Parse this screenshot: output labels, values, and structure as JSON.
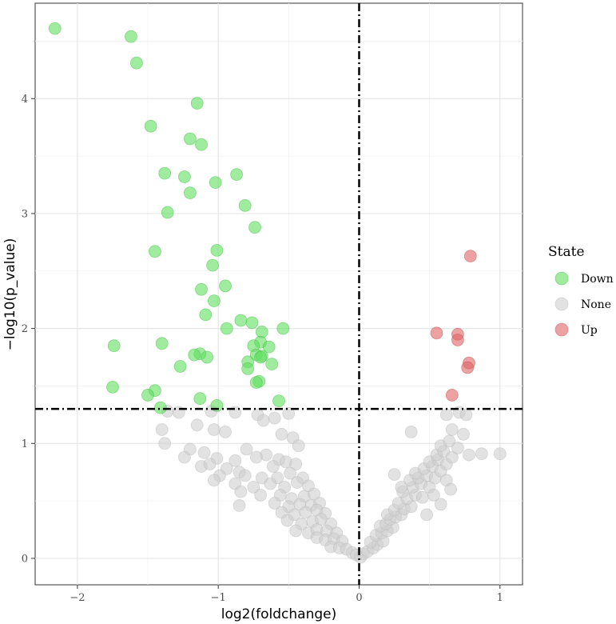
{
  "chart_data": {
    "type": "scatter",
    "title": "",
    "xlabel": "log2(foldchange)",
    "ylabel": "−log10(p_value)",
    "xlim": [
      -2.3,
      1.16
    ],
    "ylim": [
      -0.23,
      4.83
    ],
    "x_ticks": [
      -2,
      -1,
      0,
      1
    ],
    "x_tick_labels": [
      "−2",
      "−1",
      "0",
      "1"
    ],
    "y_ticks": [
      0,
      1,
      2,
      3,
      4
    ],
    "y_tick_labels": [
      "0",
      "1",
      "2",
      "3",
      "4"
    ],
    "thresholds": {
      "x": 0,
      "y": 1.3
    },
    "legend": {
      "title": "State",
      "position": "right",
      "entries": [
        {
          "label": "Down",
          "color": "#5fe05f"
        },
        {
          "label": "None",
          "color": "#cfcfcf"
        },
        {
          "label": "Up",
          "color": "#e06464"
        }
      ]
    },
    "series": [
      {
        "name": "Down",
        "color": "#5fe05f",
        "stroke": "#3cb83c",
        "points": [
          [
            -2.16,
            4.61
          ],
          [
            -1.62,
            4.54
          ],
          [
            -1.58,
            4.31
          ],
          [
            -1.15,
            3.96
          ],
          [
            -1.48,
            3.76
          ],
          [
            -1.2,
            3.65
          ],
          [
            -1.12,
            3.6
          ],
          [
            -1.38,
            3.35
          ],
          [
            -1.24,
            3.32
          ],
          [
            -0.87,
            3.34
          ],
          [
            -1.02,
            3.27
          ],
          [
            -1.2,
            3.18
          ],
          [
            -0.81,
            3.07
          ],
          [
            -1.36,
            3.01
          ],
          [
            -0.74,
            2.88
          ],
          [
            -1.45,
            2.67
          ],
          [
            -1.01,
            2.68
          ],
          [
            -1.04,
            2.55
          ],
          [
            -0.95,
            2.37
          ],
          [
            -1.12,
            2.34
          ],
          [
            -1.03,
            2.24
          ],
          [
            -1.09,
            2.12
          ],
          [
            -0.84,
            2.07
          ],
          [
            -0.76,
            2.05
          ],
          [
            -0.94,
            2.0
          ],
          [
            -0.54,
            2.0
          ],
          [
            -0.69,
            1.97
          ],
          [
            -1.74,
            1.85
          ],
          [
            -1.4,
            1.87
          ],
          [
            -0.7,
            1.88
          ],
          [
            -0.75,
            1.85
          ],
          [
            -0.64,
            1.84
          ],
          [
            -1.13,
            1.78
          ],
          [
            -1.17,
            1.77
          ],
          [
            -1.08,
            1.75
          ],
          [
            -0.73,
            1.77
          ],
          [
            -0.69,
            1.76
          ],
          [
            -0.7,
            1.75
          ],
          [
            -0.79,
            1.71
          ],
          [
            -0.62,
            1.69
          ],
          [
            -1.27,
            1.67
          ],
          [
            -0.79,
            1.65
          ],
          [
            -0.71,
            1.54
          ],
          [
            -0.73,
            1.53
          ],
          [
            -1.75,
            1.49
          ],
          [
            -1.45,
            1.46
          ],
          [
            -1.5,
            1.42
          ],
          [
            -0.57,
            1.37
          ],
          [
            -1.13,
            1.39
          ],
          [
            -1.41,
            1.31
          ],
          [
            -1.01,
            1.33
          ]
        ]
      },
      {
        "name": "None",
        "color": "#cfcfcf",
        "stroke": "#b8b8b8",
        "points": [
          [
            -1.36,
            1.28
          ],
          [
            -1.28,
            1.27
          ],
          [
            -1.05,
            1.28
          ],
          [
            -0.88,
            1.27
          ],
          [
            -0.72,
            1.25
          ],
          [
            -0.68,
            1.2
          ],
          [
            -0.6,
            1.22
          ],
          [
            -0.5,
            1.26
          ],
          [
            -1.4,
            1.12
          ],
          [
            -1.15,
            1.16
          ],
          [
            -0.95,
            1.1
          ],
          [
            -1.03,
            1.12
          ],
          [
            -0.55,
            1.08
          ],
          [
            -0.47,
            1.05
          ],
          [
            -1.38,
            1.0
          ],
          [
            -1.2,
            0.95
          ],
          [
            -1.1,
            0.92
          ],
          [
            -0.8,
            0.95
          ],
          [
            -0.66,
            0.9
          ],
          [
            -0.43,
            0.98
          ],
          [
            -1.24,
            0.88
          ],
          [
            -1.01,
            0.87
          ],
          [
            -0.88,
            0.85
          ],
          [
            -0.73,
            0.88
          ],
          [
            -0.57,
            0.86
          ],
          [
            -0.52,
            0.84
          ],
          [
            -1.12,
            0.8
          ],
          [
            -1.06,
            0.82
          ],
          [
            -0.94,
            0.78
          ],
          [
            -0.85,
            0.75
          ],
          [
            -0.61,
            0.8
          ],
          [
            -0.45,
            0.82
          ],
          [
            -0.99,
            0.72
          ],
          [
            -0.81,
            0.72
          ],
          [
            -0.69,
            0.7
          ],
          [
            -0.58,
            0.7
          ],
          [
            -0.49,
            0.74
          ],
          [
            -0.4,
            0.7
          ],
          [
            -1.03,
            0.68
          ],
          [
            -0.88,
            0.65
          ],
          [
            -0.75,
            0.62
          ],
          [
            -0.63,
            0.65
          ],
          [
            -0.53,
            0.62
          ],
          [
            -0.44,
            0.66
          ],
          [
            -0.36,
            0.63
          ],
          [
            -0.84,
            0.58
          ],
          [
            -0.7,
            0.55
          ],
          [
            -0.56,
            0.55
          ],
          [
            -0.48,
            0.52
          ],
          [
            -0.39,
            0.54
          ],
          [
            -0.32,
            0.56
          ],
          [
            -0.85,
            0.46
          ],
          [
            -0.6,
            0.48
          ],
          [
            -0.5,
            0.45
          ],
          [
            -0.42,
            0.47
          ],
          [
            -0.34,
            0.46
          ],
          [
            -0.28,
            0.48
          ],
          [
            -0.55,
            0.4
          ],
          [
            -0.46,
            0.38
          ],
          [
            -0.38,
            0.4
          ],
          [
            -0.3,
            0.42
          ],
          [
            -0.24,
            0.39
          ],
          [
            -0.51,
            0.33
          ],
          [
            -0.41,
            0.3
          ],
          [
            -0.33,
            0.32
          ],
          [
            -0.27,
            0.34
          ],
          [
            -0.2,
            0.3
          ],
          [
            -0.45,
            0.24
          ],
          [
            -0.36,
            0.22
          ],
          [
            -0.3,
            0.25
          ],
          [
            -0.23,
            0.24
          ],
          [
            -0.16,
            0.22
          ],
          [
            -0.3,
            0.18
          ],
          [
            -0.24,
            0.16
          ],
          [
            -0.18,
            0.17
          ],
          [
            -0.12,
            0.15
          ],
          [
            -0.2,
            0.1
          ],
          [
            -0.14,
            0.09
          ],
          [
            -0.09,
            0.08
          ],
          [
            -0.05,
            0.05
          ],
          [
            -0.02,
            0.03
          ],
          [
            0.01,
            0.01
          ],
          [
            0.03,
            0.04
          ],
          [
            0.06,
            0.06
          ],
          [
            0.1,
            0.09
          ],
          [
            0.13,
            0.12
          ],
          [
            0.17,
            0.15
          ],
          [
            0.08,
            0.14
          ],
          [
            0.12,
            0.2
          ],
          [
            0.16,
            0.22
          ],
          [
            0.2,
            0.24
          ],
          [
            0.24,
            0.27
          ],
          [
            0.15,
            0.28
          ],
          [
            0.19,
            0.3
          ],
          [
            0.22,
            0.34
          ],
          [
            0.26,
            0.36
          ],
          [
            0.3,
            0.38
          ],
          [
            0.2,
            0.38
          ],
          [
            0.25,
            0.42
          ],
          [
            0.32,
            0.43
          ],
          [
            0.37,
            0.45
          ],
          [
            0.28,
            0.48
          ],
          [
            0.34,
            0.52
          ],
          [
            0.4,
            0.55
          ],
          [
            0.45,
            0.53
          ],
          [
            0.31,
            0.58
          ],
          [
            0.38,
            0.62
          ],
          [
            0.44,
            0.65
          ],
          [
            0.5,
            0.62
          ],
          [
            0.36,
            0.68
          ],
          [
            0.42,
            0.7
          ],
          [
            0.48,
            0.72
          ],
          [
            0.54,
            0.7
          ],
          [
            0.4,
            0.74
          ],
          [
            0.46,
            0.78
          ],
          [
            0.52,
            0.8
          ],
          [
            0.58,
            0.76
          ],
          [
            0.5,
            0.84
          ],
          [
            0.56,
            0.86
          ],
          [
            0.62,
            0.82
          ],
          [
            0.55,
            0.9
          ],
          [
            0.6,
            0.93
          ],
          [
            0.66,
            0.88
          ],
          [
            0.58,
            0.98
          ],
          [
            0.64,
            1.02
          ],
          [
            0.7,
            0.96
          ],
          [
            0.66,
            1.12
          ],
          [
            0.74,
            1.08
          ],
          [
            0.62,
            1.25
          ],
          [
            0.71,
            1.27
          ],
          [
            0.76,
            1.25
          ],
          [
            0.78,
            0.9
          ],
          [
            0.87,
            0.91
          ],
          [
            1.0,
            0.91
          ],
          [
            0.53,
            0.55
          ],
          [
            0.58,
            0.47
          ],
          [
            0.62,
            0.68
          ],
          [
            0.48,
            0.38
          ],
          [
            0.65,
            0.6
          ],
          [
            0.37,
            1.1
          ],
          [
            0.25,
            0.73
          ],
          [
            0.3,
            0.62
          ]
        ]
      },
      {
        "name": "Up",
        "color": "#e06464",
        "stroke": "#c04848",
        "points": [
          [
            0.79,
            2.63
          ],
          [
            0.55,
            1.96
          ],
          [
            0.7,
            1.95
          ],
          [
            0.7,
            1.9
          ],
          [
            0.78,
            1.7
          ],
          [
            0.77,
            1.66
          ],
          [
            0.66,
            1.42
          ]
        ]
      }
    ]
  }
}
